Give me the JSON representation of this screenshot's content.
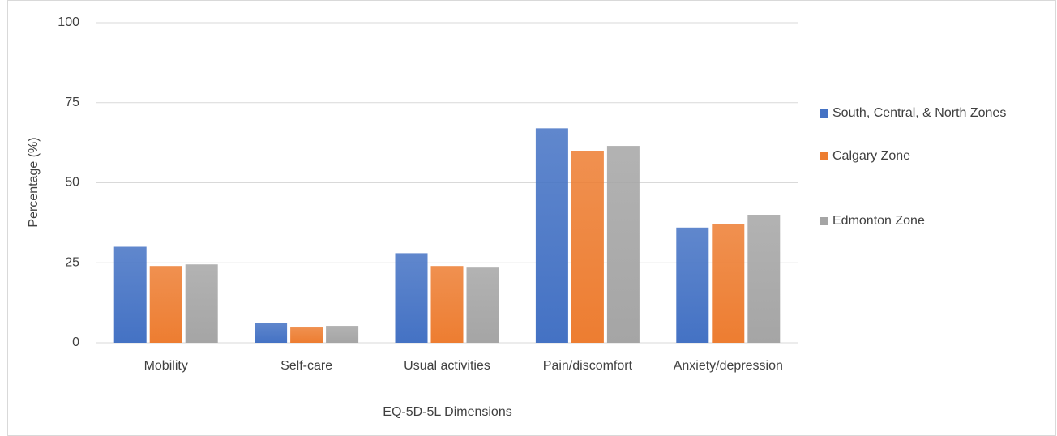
{
  "chart_data": {
    "type": "bar",
    "y_axis_label": "Percentage (%)",
    "x_axis_label": "EQ-5D-5L Dimensions",
    "categories": [
      "Mobility",
      "Self-care",
      "Usual activities",
      "Pain/discomfort",
      "Anxiety/depression"
    ],
    "series": [
      {
        "name": "South, Central, & North Zones",
        "color": "#4472c4",
        "values": [
          30,
          6.3,
          28,
          67,
          36
        ]
      },
      {
        "name": "Calgary Zone",
        "color": "#ed7d31",
        "values": [
          24,
          4.8,
          24,
          60,
          37
        ]
      },
      {
        "name": "Edmonton Zone",
        "color": "#a5a5a5",
        "values": [
          24.5,
          5.3,
          23.5,
          61.5,
          40
        ]
      }
    ],
    "ylim": [
      0,
      100
    ],
    "yticks": [
      0,
      25,
      50,
      75,
      100
    ],
    "grid": true,
    "legend": "right"
  }
}
